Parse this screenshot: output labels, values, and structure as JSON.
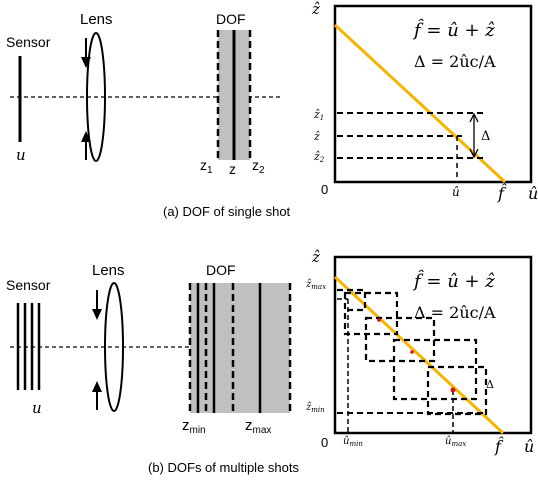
{
  "top": {
    "sensor_label": "Sensor",
    "lens_label": "Lens",
    "dof_label": "DOF",
    "u_label": "u",
    "z1_label": "z",
    "z1_sub": "1",
    "z_label": "z",
    "z2_label": "z",
    "z2_sub": "2",
    "caption": "(a) DOF of single shot",
    "plot": {
      "y_axis": "ẑ",
      "x_axis": "û",
      "origin": "0",
      "eq1": "f̂ = û + ẑ",
      "eq2": "Δ = 2ûc/A",
      "z1_tick": "ẑ",
      "z1_tick_sub": "1",
      "z_tick": "ẑ",
      "z2_tick": "ẑ",
      "z2_tick_sub": "2",
      "u_tick": "û",
      "f_tick": "f̂",
      "delta": "Δ"
    }
  },
  "bottom": {
    "sensor_label": "Sensor",
    "lens_label": "Lens",
    "dof_label": "DOF",
    "u_label": "u",
    "zmin_label": "z",
    "zmin_sub": "min",
    "zmax_label": "z",
    "zmax_sub": "max",
    "caption": "(b) DOFs of multiple shots",
    "plot": {
      "y_axis": "ẑ",
      "x_axis": "û",
      "origin": "0",
      "eq1": "f̂ = û + ẑ",
      "eq2": "Δ = 2ûc/A",
      "zmax_tick": "ẑ",
      "zmax_tick_sub": "max",
      "zmin_tick": "ẑ",
      "zmin_tick_sub": "min",
      "umin_tick": "û",
      "umin_tick_sub": "min",
      "umax_tick": "û",
      "umax_tick_sub": "max",
      "f_tick": "f̂",
      "delta": "Δ"
    }
  },
  "colors": {
    "focus_line": "#f5b400",
    "dof_fill": "#c0c0c0",
    "red_point": "#e01010"
  }
}
